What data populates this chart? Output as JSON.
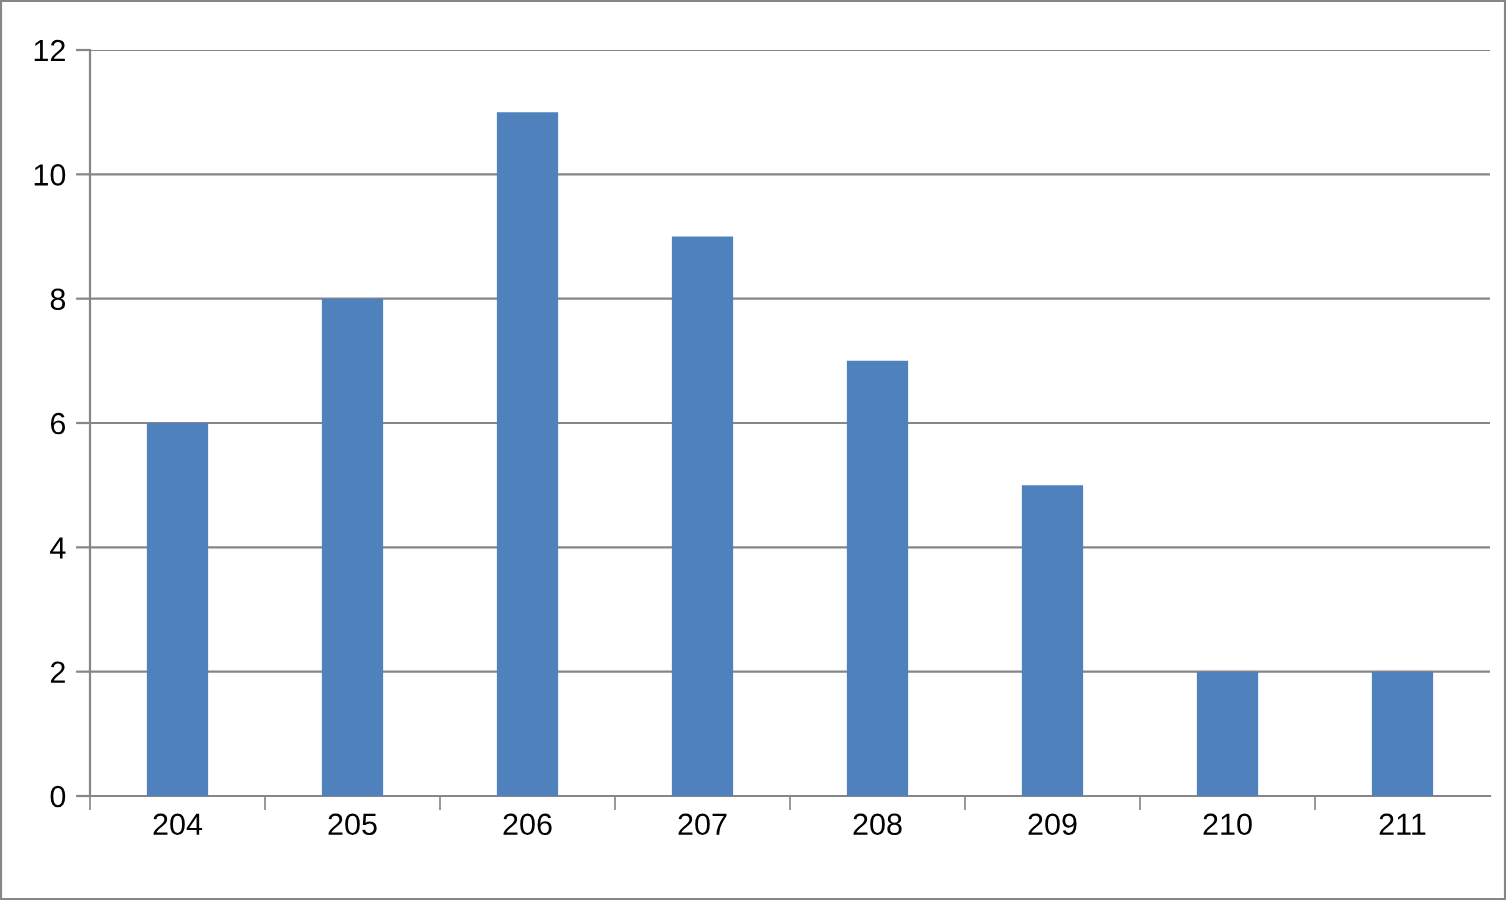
{
  "chart_data": {
    "type": "bar",
    "categories": [
      "204",
      "205",
      "206",
      "207",
      "208",
      "209",
      "210",
      "211"
    ],
    "values": [
      6,
      8,
      11,
      9,
      7,
      5,
      2,
      2
    ],
    "color": "#4f81bd",
    "ylim": [
      0,
      12
    ],
    "yticks": [
      0,
      2,
      4,
      6,
      8,
      10,
      12
    ],
    "grid": "y"
  }
}
